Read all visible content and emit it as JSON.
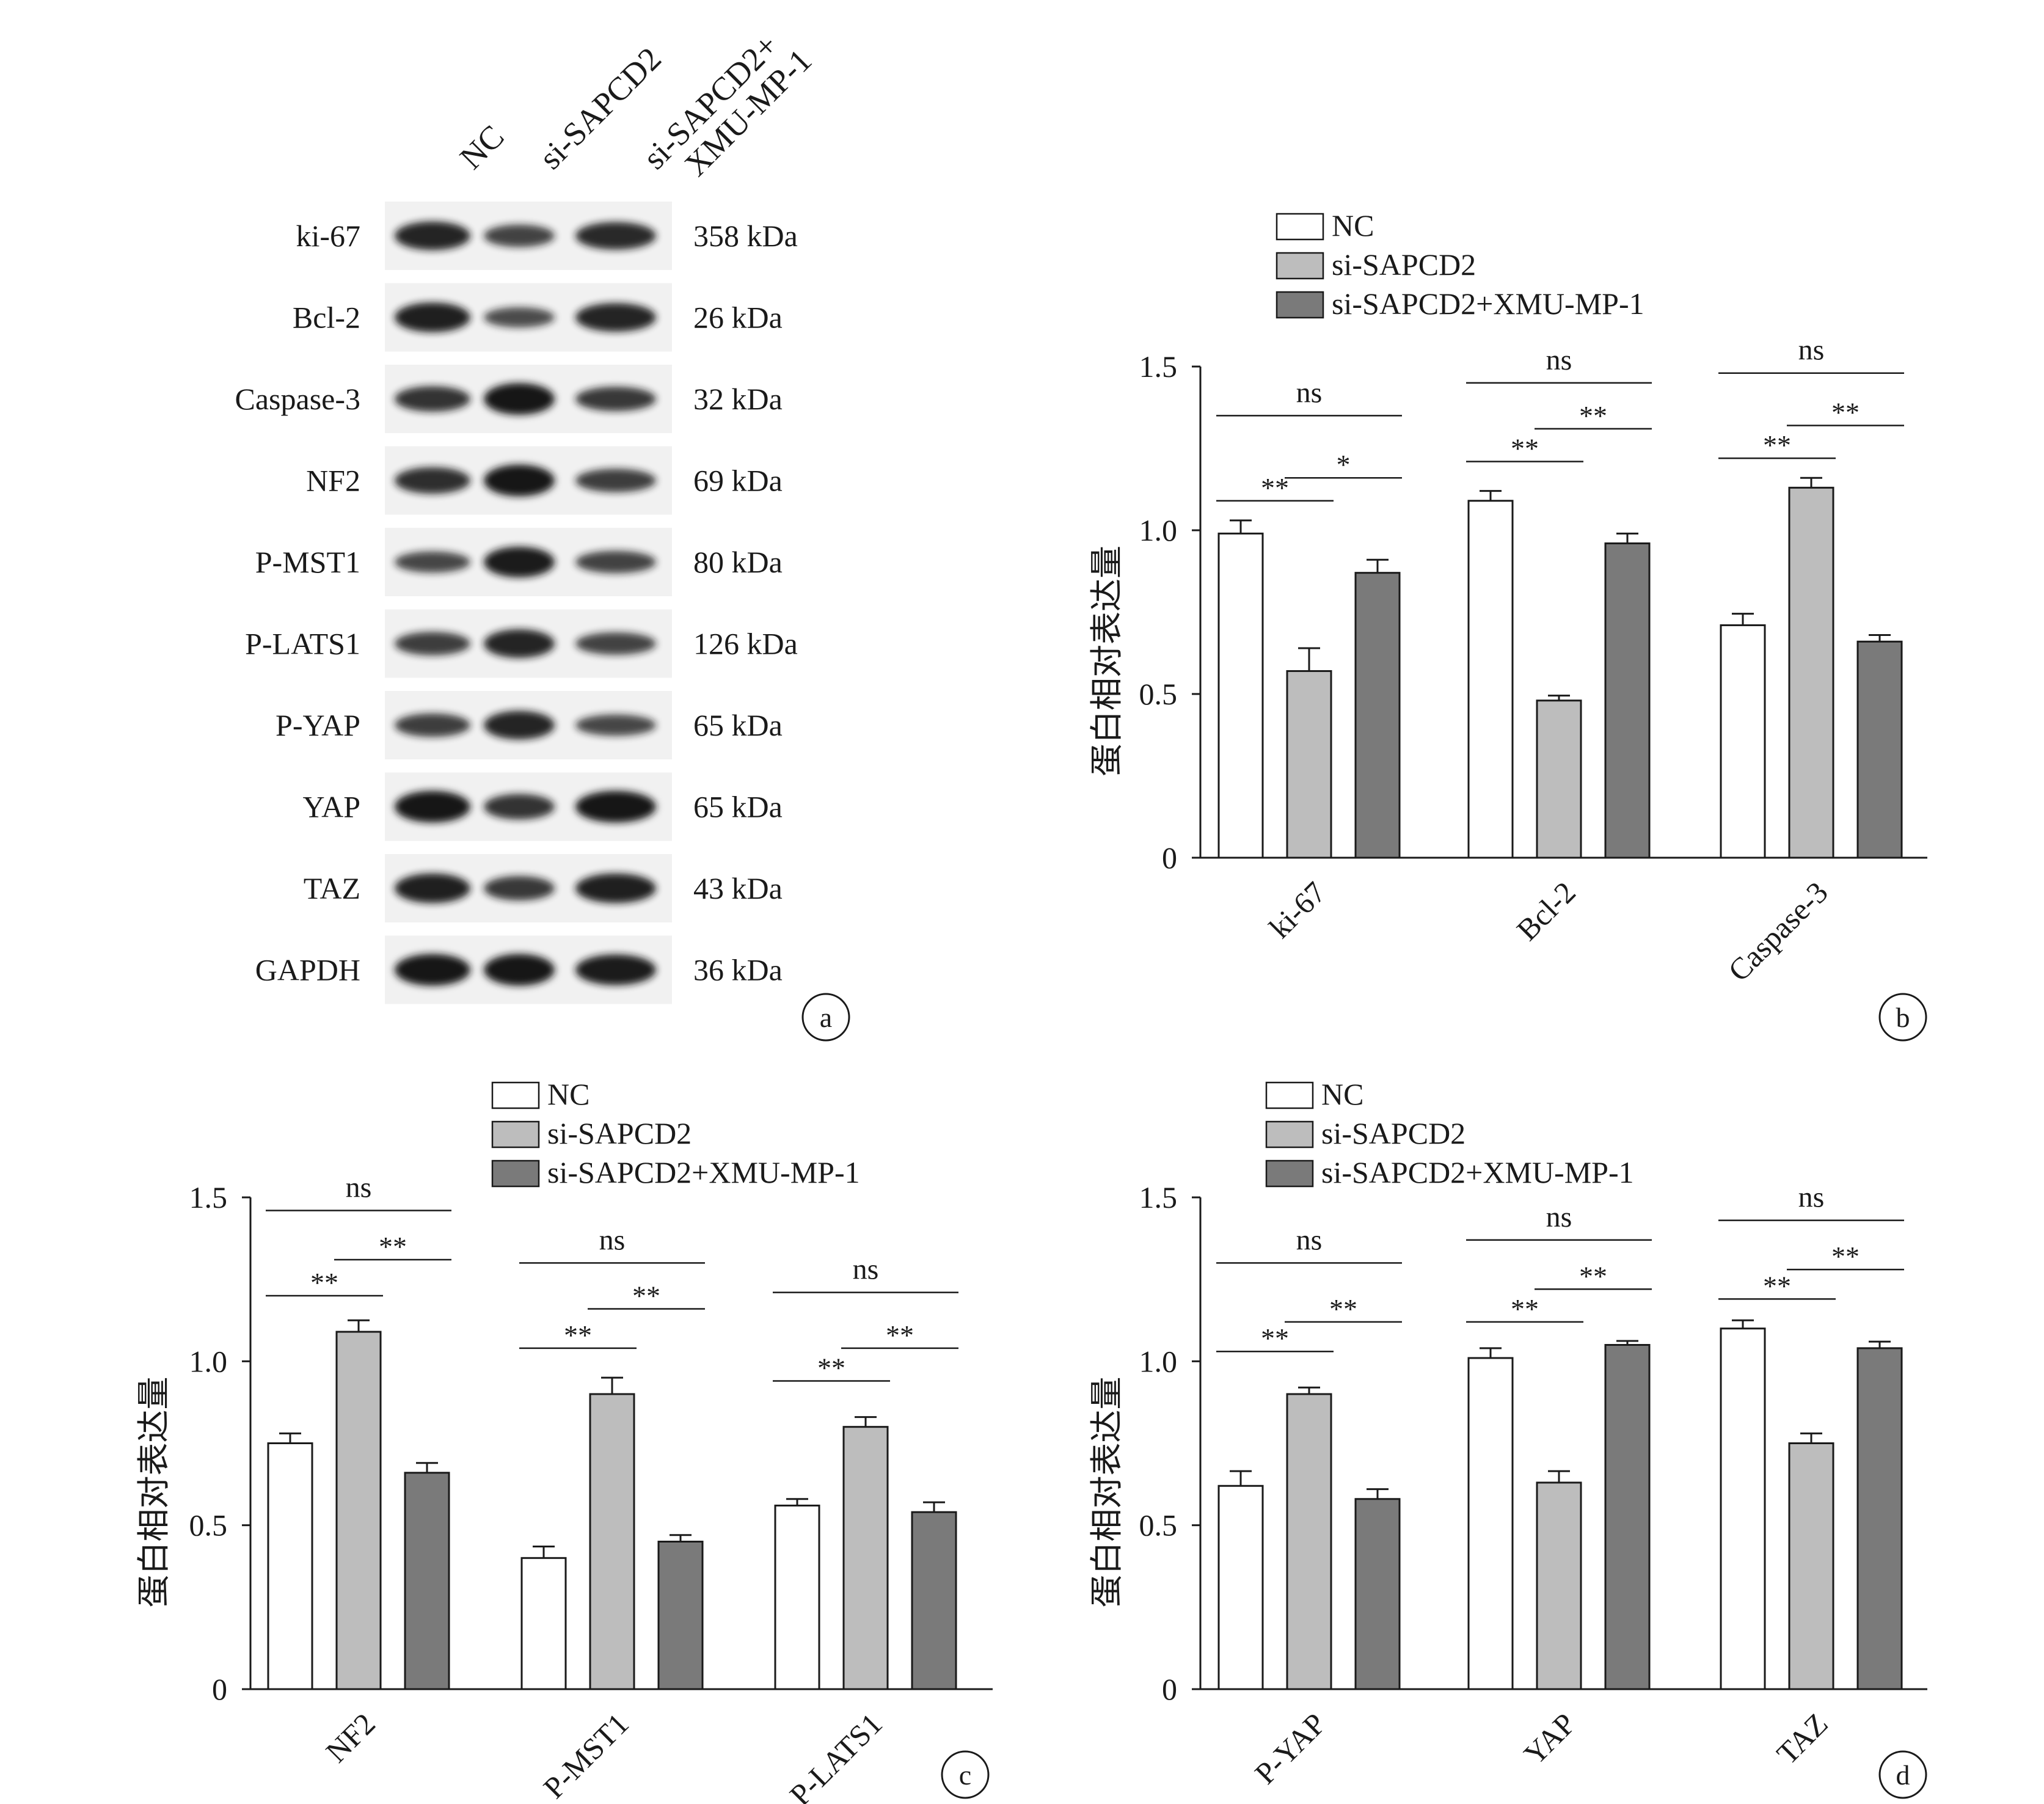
{
  "panel_a": {
    "lanes": [
      "NC",
      "si-SAPCD2",
      "si-SAPCD2+\nXMU-MP-1"
    ],
    "blots": [
      {
        "protein": "ki-67",
        "size": "358 kDa",
        "intensity": [
          0.85,
          0.55,
          0.8
        ]
      },
      {
        "protein": "Bcl-2",
        "size": "26 kDa",
        "intensity": [
          0.9,
          0.45,
          0.85
        ]
      },
      {
        "protein": "Caspase-3",
        "size": "32 kDa",
        "intensity": [
          0.7,
          1.0,
          0.65
        ]
      },
      {
        "protein": "NF2",
        "size": "69 kDa",
        "intensity": [
          0.75,
          1.0,
          0.6
        ]
      },
      {
        "protein": "P-MST1",
        "size": "80 kDa",
        "intensity": [
          0.5,
          0.95,
          0.55
        ]
      },
      {
        "protein": "P-LATS1",
        "size": "126 kDa",
        "intensity": [
          0.6,
          0.85,
          0.55
        ]
      },
      {
        "protein": "P-YAP",
        "size": "65 kDa",
        "intensity": [
          0.6,
          0.85,
          0.5
        ]
      },
      {
        "protein": "YAP",
        "size": "65 kDa",
        "intensity": [
          1.0,
          0.7,
          1.0
        ]
      },
      {
        "protein": "TAZ",
        "size": "43 kDa",
        "intensity": [
          0.9,
          0.65,
          0.9
        ]
      },
      {
        "protein": "GAPDH",
        "size": "36 kDa",
        "intensity": [
          1.0,
          1.0,
          0.95
        ]
      }
    ],
    "label": "a"
  },
  "colors": {
    "NC": "#ffffff",
    "si-SAPCD2": "#bdbdbd",
    "si-SAPCD2+XMU-MP-1": "#7a7a7a"
  },
  "chart_data": [
    {
      "panel": "b",
      "type": "bar",
      "categories": [
        "ki-67",
        "Bcl-2",
        "Caspase-3"
      ],
      "ylabel": "蛋白相对表达量",
      "xlabel": "",
      "ylim": [
        0,
        1.5
      ],
      "yticks": [
        "0",
        "0.5",
        "1.0",
        "1.5"
      ],
      "legend_position": "top",
      "series": [
        {
          "name": "NC",
          "values": [
            0.99,
            1.09,
            0.71
          ],
          "errors": [
            0.04,
            0.03,
            0.035
          ]
        },
        {
          "name": "si-SAPCD2",
          "values": [
            0.57,
            0.48,
            1.13
          ],
          "errors": [
            0.07,
            0.015,
            0.03
          ]
        },
        {
          "name": "si-SAPCD2+XMU-MP-1",
          "values": [
            0.87,
            0.96,
            0.66
          ],
          "errors": [
            0.04,
            0.03,
            0.02
          ]
        }
      ],
      "annotations": [
        {
          "group": 0,
          "pair": [
            0,
            2
          ],
          "label": "ns",
          "level": 1.35
        },
        {
          "group": 0,
          "pair": [
            0,
            1
          ],
          "label": "**",
          "level": 1.09
        },
        {
          "group": 0,
          "pair": [
            1,
            2
          ],
          "label": "*",
          "level": 1.16
        },
        {
          "group": 1,
          "pair": [
            0,
            2
          ],
          "label": "ns",
          "level": 1.45
        },
        {
          "group": 1,
          "pair": [
            0,
            1
          ],
          "label": "**",
          "level": 1.21
        },
        {
          "group": 1,
          "pair": [
            1,
            2
          ],
          "label": "**",
          "level": 1.31
        },
        {
          "group": 2,
          "pair": [
            0,
            2
          ],
          "label": "ns",
          "level": 1.48
        },
        {
          "group": 2,
          "pair": [
            0,
            1
          ],
          "label": "**",
          "level": 1.22
        },
        {
          "group": 2,
          "pair": [
            1,
            2
          ],
          "label": "**",
          "level": 1.32
        }
      ]
    },
    {
      "panel": "c",
      "type": "bar",
      "categories": [
        "NF2",
        "P-MST1",
        "P-LATS1"
      ],
      "ylabel": "蛋白相对表达量",
      "xlabel": "",
      "ylim": [
        0,
        1.5
      ],
      "yticks": [
        "0",
        "0.5",
        "1.0",
        "1.5"
      ],
      "legend_position": "top",
      "series": [
        {
          "name": "NC",
          "values": [
            0.75,
            0.4,
            0.56
          ],
          "errors": [
            0.03,
            0.035,
            0.02
          ]
        },
        {
          "name": "si-SAPCD2",
          "values": [
            1.09,
            0.9,
            0.8
          ],
          "errors": [
            0.035,
            0.05,
            0.03
          ]
        },
        {
          "name": "si-SAPCD2+XMU-MP-1",
          "values": [
            0.66,
            0.45,
            0.54
          ],
          "errors": [
            0.03,
            0.02,
            0.03
          ]
        }
      ],
      "annotations": [
        {
          "group": 0,
          "pair": [
            0,
            2
          ],
          "label": "ns",
          "level": 1.46
        },
        {
          "group": 0,
          "pair": [
            0,
            1
          ],
          "label": "**",
          "level": 1.2
        },
        {
          "group": 0,
          "pair": [
            1,
            2
          ],
          "label": "**",
          "level": 1.31
        },
        {
          "group": 1,
          "pair": [
            0,
            2
          ],
          "label": "ns",
          "level": 1.3
        },
        {
          "group": 1,
          "pair": [
            0,
            1
          ],
          "label": "**",
          "level": 1.04
        },
        {
          "group": 1,
          "pair": [
            1,
            2
          ],
          "label": "**",
          "level": 1.16
        },
        {
          "group": 2,
          "pair": [
            0,
            2
          ],
          "label": "ns",
          "level": 1.21
        },
        {
          "group": 2,
          "pair": [
            0,
            1
          ],
          "label": "**",
          "level": 0.94
        },
        {
          "group": 2,
          "pair": [
            1,
            2
          ],
          "label": "**",
          "level": 1.04
        }
      ]
    },
    {
      "panel": "d",
      "type": "bar",
      "categories": [
        "P-YAP",
        "YAP",
        "TAZ"
      ],
      "ylabel": "蛋白相对表达量",
      "xlabel": "",
      "ylim": [
        0,
        1.5
      ],
      "yticks": [
        "0",
        "0.5",
        "1.0",
        "1.5"
      ],
      "legend_position": "top",
      "series": [
        {
          "name": "NC",
          "values": [
            0.62,
            1.01,
            1.1
          ],
          "errors": [
            0.045,
            0.03,
            0.025
          ]
        },
        {
          "name": "si-SAPCD2",
          "values": [
            0.9,
            0.63,
            0.75
          ],
          "errors": [
            0.02,
            0.035,
            0.03
          ]
        },
        {
          "name": "si-SAPCD2+XMU-MP-1",
          "values": [
            0.58,
            1.05,
            1.04
          ],
          "errors": [
            0.03,
            0.012,
            0.02
          ]
        }
      ],
      "annotations": [
        {
          "group": 0,
          "pair": [
            0,
            2
          ],
          "label": "ns",
          "level": 1.3
        },
        {
          "group": 0,
          "pair": [
            0,
            1
          ],
          "label": "**",
          "level": 1.03
        },
        {
          "group": 0,
          "pair": [
            1,
            2
          ],
          "label": "**",
          "level": 1.12
        },
        {
          "group": 1,
          "pair": [
            0,
            2
          ],
          "label": "ns",
          "level": 1.37
        },
        {
          "group": 1,
          "pair": [
            0,
            1
          ],
          "label": "**",
          "level": 1.12
        },
        {
          "group": 1,
          "pair": [
            1,
            2
          ],
          "label": "**",
          "level": 1.22
        },
        {
          "group": 2,
          "pair": [
            0,
            2
          ],
          "label": "ns",
          "level": 1.43
        },
        {
          "group": 2,
          "pair": [
            0,
            1
          ],
          "label": "**",
          "level": 1.19
        },
        {
          "group": 2,
          "pair": [
            1,
            2
          ],
          "label": "**",
          "level": 1.28
        }
      ]
    }
  ]
}
